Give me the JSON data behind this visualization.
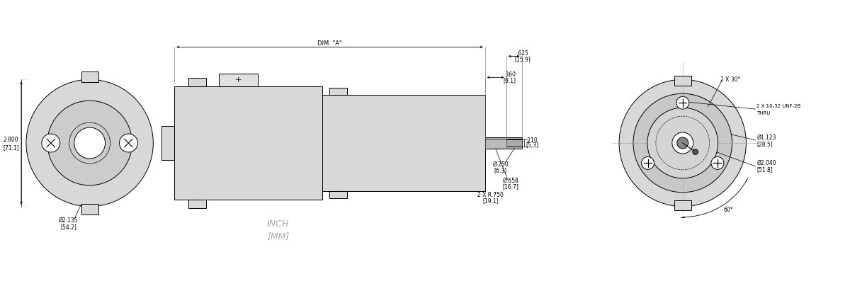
{
  "bg_color": "#ffffff",
  "line_color": "#000000",
  "fill_color": "#d8d8d8",
  "fig_width": 12.0,
  "fig_height": 4.04,
  "annotations": {
    "dim_A_label": "DIM. \"A\"",
    "inch_mm_1": "INCH",
    "inch_mm_2": "[MM]",
    "left_diameter_1": "Ø2.135",
    "left_diameter_2": "[54.2]",
    "left_height_1": "2.800",
    "left_height_2": "[71.1]",
    "shaft_d1_1": "Ø.250",
    "shaft_d1_2": "[6.3]",
    "shaft_d2_1": "Ø.658",
    "shaft_d2_2": "[16.7]",
    "shaft_r_1": "2 X R.750",
    "shaft_r_2": "[19.1]",
    "shaft_len1_1": ".625",
    "shaft_len1_2": "[15.9]",
    "shaft_len2_1": ".360",
    "shaft_len2_2": "[9.1]",
    "shaft_depth_1": ".210",
    "shaft_depth_2": "[5,3]",
    "right_angle1": "2 X 30°",
    "right_d1_1": "Ø1.123",
    "right_d1_2": "[28.5]",
    "right_d2_1": "Ø2.040",
    "right_d2_2": "[51.8]",
    "right_screw_1": "2 X 10-32 UNF-2B",
    "right_screw_2": "THRU",
    "right_angle2": "60°"
  }
}
